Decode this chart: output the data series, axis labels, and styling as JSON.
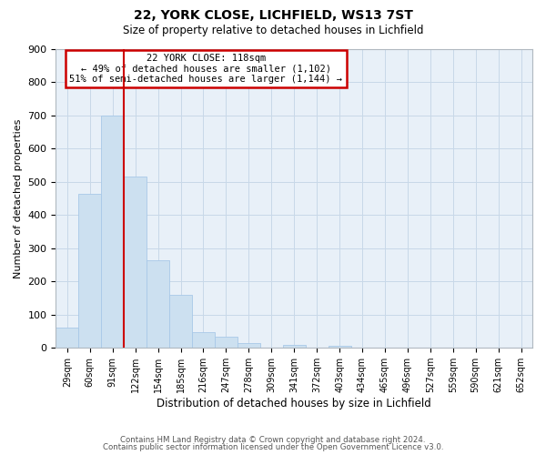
{
  "title1": "22, YORK CLOSE, LICHFIELD, WS13 7ST",
  "title2": "Size of property relative to detached houses in Lichfield",
  "xlabel": "Distribution of detached houses by size in Lichfield",
  "ylabel": "Number of detached properties",
  "bar_labels": [
    "29sqm",
    "60sqm",
    "91sqm",
    "122sqm",
    "154sqm",
    "185sqm",
    "216sqm",
    "247sqm",
    "278sqm",
    "309sqm",
    "341sqm",
    "372sqm",
    "403sqm",
    "434sqm",
    "465sqm",
    "496sqm",
    "527sqm",
    "559sqm",
    "590sqm",
    "621sqm",
    "652sqm"
  ],
  "bar_values": [
    60,
    465,
    700,
    515,
    265,
    160,
    47,
    33,
    13,
    0,
    10,
    0,
    5,
    0,
    0,
    0,
    0,
    0,
    0,
    0,
    0
  ],
  "bar_color": "#cce0f0",
  "bar_edge_color": "#a8c8e8",
  "vline_color": "#cc0000",
  "annotation_title": "22 YORK CLOSE: 118sqm",
  "annotation_line1": "← 49% of detached houses are smaller (1,102)",
  "annotation_line2": "51% of semi-detached houses are larger (1,144) →",
  "annotation_box_color": "#ffffff",
  "annotation_box_edge": "#cc0000",
  "ylim": [
    0,
    900
  ],
  "yticks": [
    0,
    100,
    200,
    300,
    400,
    500,
    600,
    700,
    800,
    900
  ],
  "footer1": "Contains HM Land Registry data © Crown copyright and database right 2024.",
  "footer2": "Contains public sector information licensed under the Open Government Licence v3.0.",
  "background_color": "#ffffff",
  "plot_bg_color": "#e8f0f8",
  "grid_color": "#c8d8e8"
}
